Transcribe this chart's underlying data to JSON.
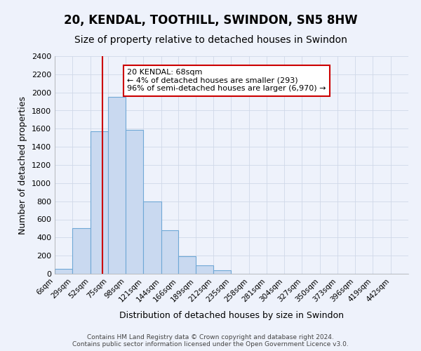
{
  "title": "20, KENDAL, TOOTHILL, SWINDON, SN5 8HW",
  "subtitle": "Size of property relative to detached houses in Swindon",
  "xlabel": "Distribution of detached houses by size in Swindon",
  "ylabel": "Number of detached properties",
  "bin_edges": [
    6,
    29,
    52,
    75,
    98,
    121,
    144,
    166,
    189,
    212,
    235,
    258,
    281,
    304,
    327,
    350,
    373,
    396,
    419,
    442,
    465
  ],
  "bin_heights": [
    55,
    500,
    1575,
    1950,
    1585,
    800,
    480,
    190,
    90,
    35,
    0,
    0,
    0,
    0,
    0,
    0,
    0,
    0,
    0,
    0
  ],
  "bar_facecolor": "#c9d9f0",
  "bar_edgecolor": "#6fa8d6",
  "vline_x": 68,
  "vline_color": "#cc0000",
  "annotation_text": "20 KENDAL: 68sqm\n← 4% of detached houses are smaller (293)\n96% of semi-detached houses are larger (6,970) →",
  "annotation_box_edgecolor": "#cc0000",
  "annotation_box_facecolor": "#ffffff",
  "ylim": [
    0,
    2400
  ],
  "yticks": [
    0,
    200,
    400,
    600,
    800,
    1000,
    1200,
    1400,
    1600,
    1800,
    2000,
    2200,
    2400
  ],
  "grid_color": "#d0d8e8",
  "background_color": "#eef2fb",
  "title_fontsize": 12,
  "subtitle_fontsize": 10,
  "footer_line1": "Contains HM Land Registry data © Crown copyright and database right 2024.",
  "footer_line2": "Contains public sector information licensed under the Open Government Licence v3.0."
}
